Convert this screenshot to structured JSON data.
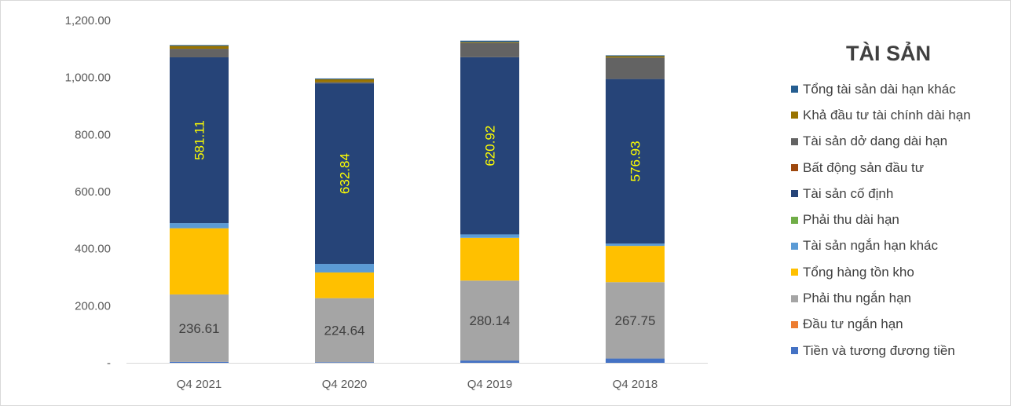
{
  "chart_data": {
    "type": "bar",
    "stacked": true,
    "title": "TÀI SẢN",
    "categories": [
      "Q4 2021",
      "Q4 2020",
      "Q4 2019",
      "Q4 2018"
    ],
    "ylim": [
      0,
      1200
    ],
    "y_ticks": [
      {
        "value": 0,
        "label": "-"
      },
      {
        "value": 200,
        "label": "200.00"
      },
      {
        "value": 400,
        "label": "400.00"
      },
      {
        "value": 600,
        "label": "600.00"
      },
      {
        "value": 800,
        "label": "800.00"
      },
      {
        "value": 1000,
        "label": "1,000.00"
      },
      {
        "value": 1200,
        "label": "1,200.00"
      }
    ],
    "grid": false,
    "legend_position": "right",
    "series": [
      {
        "name": "Tiền và tương đương tiền",
        "color": "#4472c4",
        "values": [
          3,
          2,
          8,
          15
        ]
      },
      {
        "name": "Đầu tư ngắn hạn",
        "color": "#ed7d31",
        "values": [
          0,
          0,
          0,
          0
        ]
      },
      {
        "name": "Phải thu ngắn hạn",
        "color": "#a5a5a5",
        "values": [
          236.61,
          224.64,
          280.14,
          267.75
        ],
        "label": "236.61|224.64|280.14|267.75",
        "label_color": "#404040"
      },
      {
        "name": "Tổng hàng tồn kho",
        "color": "#ffc000",
        "values": [
          232,
          90,
          150,
          127
        ]
      },
      {
        "name": "Tài sản ngắn hạn khác",
        "color": "#5b9bd5",
        "values": [
          18,
          30,
          12,
          8
        ]
      },
      {
        "name": "Phải thu dài hạn",
        "color": "#70ad47",
        "values": [
          0,
          0,
          0,
          0
        ]
      },
      {
        "name": "Tài sản cố định",
        "color": "#264478",
        "values": [
          581.11,
          632.84,
          620.92,
          576.93
        ],
        "label_color": "#ffff00"
      },
      {
        "name": "Bất động sản đầu tư",
        "color": "#9e480e",
        "values": [
          0,
          0,
          0,
          0
        ]
      },
      {
        "name": "Tài sản dở dang dài hạn",
        "color": "#636363",
        "values": [
          30,
          4,
          50,
          75
        ]
      },
      {
        "name": "Khả đầu tư tài chính dài hạn",
        "color": "#997300",
        "values": [
          10,
          10,
          3,
          5
        ]
      },
      {
        "name": "Tổng tài sản dài hạn khác",
        "color": "#255e91",
        "values": [
          3,
          3,
          5,
          3
        ]
      }
    ],
    "data_labels": [
      {
        "series": "Phải thu ngắn hạn",
        "values": [
          "236.61",
          "224.64",
          "280.14",
          "267.75"
        ]
      },
      {
        "series": "Tài sản cố định",
        "values": [
          "581.11",
          "632.84",
          "620.92",
          "576.93"
        ]
      }
    ]
  }
}
